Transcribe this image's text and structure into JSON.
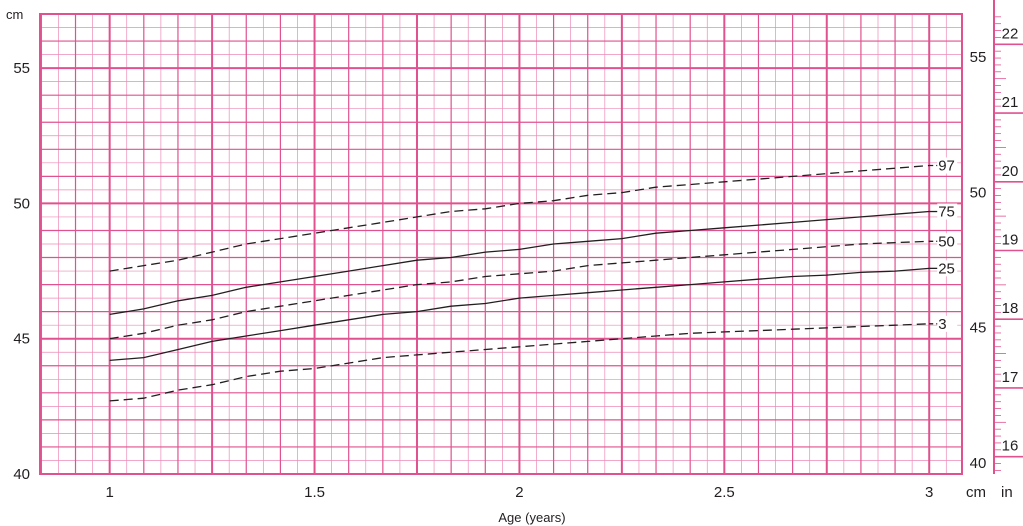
{
  "chart_data": {
    "type": "line",
    "title": "",
    "xlabel": "Age (years)",
    "ylabel": "cm",
    "xlim": [
      0.83,
      3.08
    ],
    "ylim": [
      40,
      57
    ],
    "x_ticks": [
      "1",
      "1.5",
      "2",
      "2.5",
      "3"
    ],
    "y_ticks_left": [
      "40",
      "45",
      "50",
      "55"
    ],
    "y_ticks_right_cm": [
      "40",
      "45",
      "50",
      "55"
    ],
    "y_ticks_right_in": [
      "16",
      "17",
      "18",
      "19",
      "20",
      "21",
      "22"
    ],
    "right_axis_labels": {
      "cm": "cm",
      "in": "in"
    },
    "grid": true,
    "colors": {
      "grid": "#e0528f",
      "grid_minor": "#ec8ab7",
      "line": "#231f20"
    },
    "x": [
      1,
      1.083,
      1.167,
      1.25,
      1.333,
      1.417,
      1.5,
      1.583,
      1.667,
      1.75,
      1.833,
      1.917,
      2,
      2.083,
      2.167,
      2.25,
      2.333,
      2.417,
      2.5,
      2.583,
      2.667,
      2.75,
      2.833,
      2.917,
      3
    ],
    "series": [
      {
        "name": "97",
        "style": "dashed",
        "values": [
          47.5,
          47.7,
          47.9,
          48.2,
          48.5,
          48.7,
          48.9,
          49.1,
          49.3,
          49.5,
          49.7,
          49.8,
          50.0,
          50.1,
          50.3,
          50.4,
          50.6,
          50.7,
          50.8,
          50.9,
          51.0,
          51.1,
          51.2,
          51.3,
          51.4
        ]
      },
      {
        "name": "75",
        "style": "solid",
        "values": [
          45.9,
          46.1,
          46.4,
          46.6,
          46.9,
          47.1,
          47.3,
          47.5,
          47.7,
          47.9,
          48.0,
          48.2,
          48.3,
          48.5,
          48.6,
          48.7,
          48.9,
          49.0,
          49.1,
          49.2,
          49.3,
          49.4,
          49.5,
          49.6,
          49.7
        ]
      },
      {
        "name": "50",
        "style": "dashed",
        "values": [
          45.0,
          45.2,
          45.5,
          45.7,
          46.0,
          46.2,
          46.4,
          46.6,
          46.8,
          47.0,
          47.1,
          47.3,
          47.4,
          47.5,
          47.7,
          47.8,
          47.9,
          48.0,
          48.1,
          48.2,
          48.3,
          48.4,
          48.5,
          48.55,
          48.6
        ]
      },
      {
        "name": "25",
        "style": "solid",
        "values": [
          44.2,
          44.3,
          44.6,
          44.9,
          45.1,
          45.3,
          45.5,
          45.7,
          45.9,
          46.0,
          46.2,
          46.3,
          46.5,
          46.6,
          46.7,
          46.8,
          46.9,
          47.0,
          47.1,
          47.2,
          47.3,
          47.35,
          47.45,
          47.5,
          47.6
        ]
      },
      {
        "name": "3",
        "style": "dashed",
        "values": [
          42.7,
          42.8,
          43.1,
          43.3,
          43.6,
          43.8,
          43.9,
          44.1,
          44.3,
          44.4,
          44.5,
          44.6,
          44.7,
          44.8,
          44.9,
          45.0,
          45.1,
          45.2,
          45.25,
          45.3,
          45.35,
          45.4,
          45.45,
          45.5,
          45.55
        ]
      }
    ]
  }
}
